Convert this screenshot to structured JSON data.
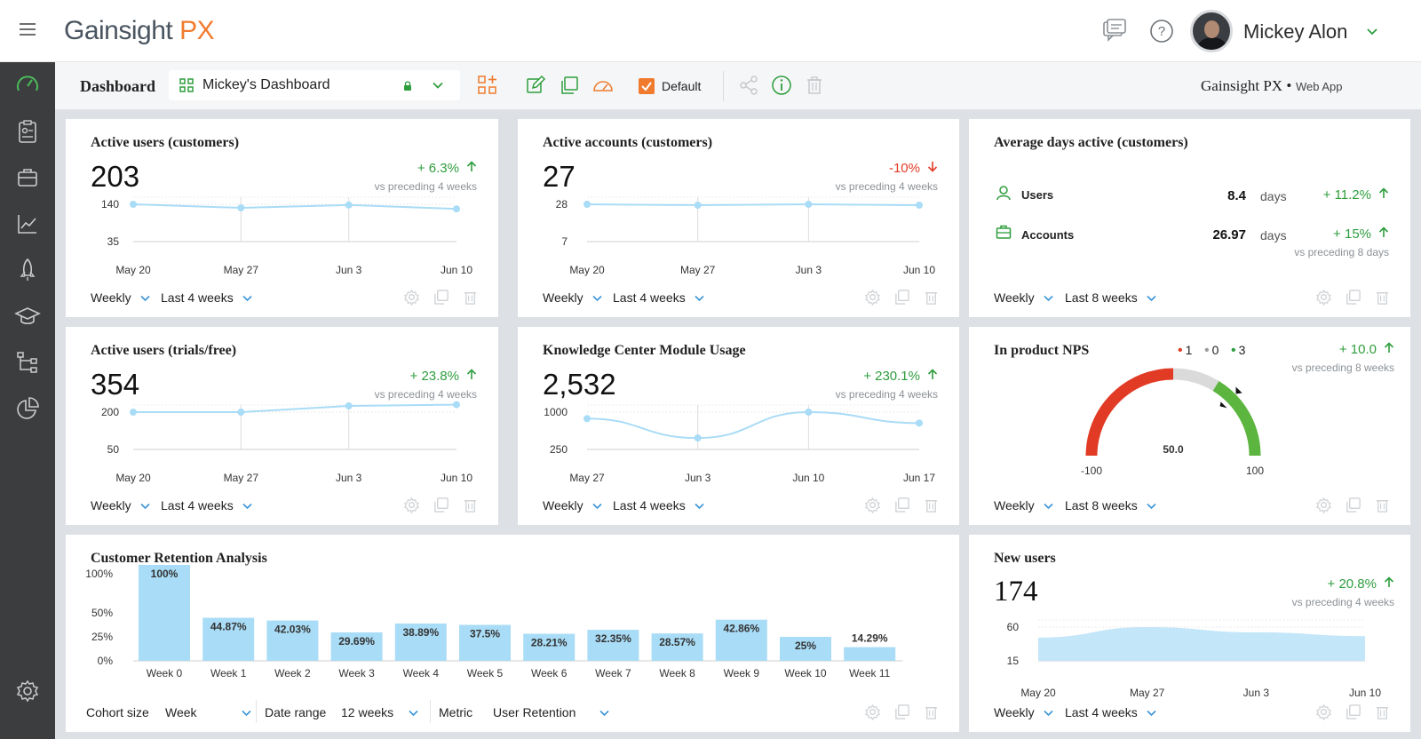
{
  "header": {
    "logo_text": "Gainsight",
    "logo_accent": "PX",
    "user_name": "Mickey Alon"
  },
  "toolbar": {
    "title": "Dashboard",
    "dashboard_name": "Mickey's Dashboard",
    "default_label": "Default",
    "app_name": "Gainsight PX",
    "app_sep": "•",
    "app_type": "Web App"
  },
  "colors": {
    "accent_orange": "#f07b2e",
    "positive_green": "#2e9d3d",
    "negative_red": "#e23b25",
    "line_blue": "#a9dcf6",
    "bar_blue": "#a9dcf6",
    "sidebar_bg": "#3b3d3f"
  },
  "icons": {
    "sidebar": [
      "speedometer-icon",
      "clipboard-icon",
      "briefcase-icon",
      "line-chart-icon",
      "rocket-icon",
      "graduation-cap-icon",
      "hierarchy-icon",
      "pie-chart-icon",
      "gear-icon"
    ],
    "toolbar": [
      "grid-icon",
      "lock-icon",
      "chevron-down-icon",
      "add-widget-icon",
      "edit-icon",
      "copy-icon",
      "gauge-icon",
      "share-icon",
      "info-icon",
      "trash-icon"
    ],
    "header": [
      "hamburger-icon",
      "chat-icon",
      "help-icon",
      "chevron-down-icon"
    ],
    "footer": [
      "settings-icon",
      "copy-icon",
      "trash-icon"
    ]
  },
  "cards": {
    "active_users_customers": {
      "title": "Active users (customers)",
      "value": "203",
      "change": "+ 6.3%",
      "direction": "up",
      "compare": "vs preceding 4 weeks",
      "period": "Weekly",
      "range": "Last 4 weeks"
    },
    "active_accounts_customers": {
      "title": "Active accounts (customers)",
      "value": "27",
      "change": "-10%",
      "direction": "down",
      "compare": "vs preceding 4 weeks",
      "period": "Weekly",
      "range": "Last 4 weeks"
    },
    "average_days_active": {
      "title": "Average days active (customers)",
      "rows": [
        {
          "label": "Users",
          "value": "8.4",
          "unit": "days",
          "change": "+ 11.2%"
        },
        {
          "label": "Accounts",
          "value": "26.97",
          "unit": "days",
          "change": "+ 15%"
        }
      ],
      "compare": "vs preceding 8 days",
      "period": "Weekly",
      "range": "Last 8 weeks"
    },
    "active_users_trials": {
      "title": "Active users (trials/free)",
      "value": "354",
      "change": "+ 23.8%",
      "direction": "up",
      "compare": "vs preceding 4 weeks",
      "period": "Weekly",
      "range": "Last 4 weeks"
    },
    "knowledge_center": {
      "title": "Knowledge Center Module Usage",
      "value": "2,532",
      "change": "+ 230.1%",
      "direction": "up",
      "compare": "vs preceding 4 weeks",
      "period": "Weekly",
      "range": "Last 4 weeks"
    },
    "nps": {
      "title": "In product NPS",
      "legend": [
        {
          "count": "1",
          "color": "#e23b25"
        },
        {
          "count": "0",
          "color": "#9b9b9b"
        },
        {
          "count": "3",
          "color": "#2e9d3d"
        }
      ],
      "change": "+ 10.0",
      "compare": "vs preceding 8 weeks",
      "score": "50.0",
      "min_label": "-100",
      "max_label": "100",
      "period": "Weekly",
      "range": "Last 8 weeks"
    },
    "retention": {
      "title": "Customer Retention Analysis",
      "cohort_size_label": "Cohort size",
      "cohort_size_value": "Week",
      "date_range_label": "Date range",
      "date_range_value": "12 weeks",
      "metric_label": "Metric",
      "metric_value": "User Retention"
    },
    "new_users": {
      "title": "New users",
      "value": "174",
      "change": "+ 20.8%",
      "direction": "up",
      "compare": "vs preceding 4 weeks",
      "period": "Weekly",
      "range": "Last 4 weeks"
    }
  },
  "chart_data": [
    {
      "id": "active_users_customers",
      "type": "line",
      "x": [
        "May 20",
        "May 27",
        "Jun 3",
        "Jun 10"
      ],
      "y_ticks": [
        "140",
        "35"
      ],
      "y_tick_values": [
        140,
        35
      ],
      "series": [
        {
          "values": [
            140,
            130,
            138,
            127
          ]
        }
      ]
    },
    {
      "id": "active_accounts_customers",
      "type": "line",
      "x": [
        "May 20",
        "May 27",
        "Jun 3",
        "Jun 10"
      ],
      "y_ticks": [
        "28",
        "7"
      ],
      "y_tick_values": [
        28,
        7
      ],
      "series": [
        {
          "values": [
            28,
            27.5,
            28,
            27.5
          ]
        }
      ]
    },
    {
      "id": "active_users_trials",
      "type": "line",
      "x": [
        "May 20",
        "May 27",
        "Jun 3",
        "Jun 10"
      ],
      "y_ticks": [
        "200",
        "50"
      ],
      "y_tick_values": [
        200,
        50
      ],
      "series": [
        {
          "values": [
            200,
            200,
            225,
            230
          ]
        }
      ]
    },
    {
      "id": "knowledge_center",
      "type": "line",
      "x": [
        "May 27",
        "Jun 3",
        "Jun 10",
        "Jun 17"
      ],
      "y_ticks": [
        "1000",
        "250"
      ],
      "y_tick_values": [
        1000,
        250
      ],
      "series": [
        {
          "values": [
            870,
            480,
            1000,
            780
          ]
        }
      ]
    },
    {
      "id": "new_users",
      "type": "area",
      "x": [
        "May 20",
        "May 27",
        "Jun 3",
        "Jun 10"
      ],
      "y_ticks": [
        "60",
        "15"
      ],
      "y_tick_values": [
        60,
        15
      ],
      "series": [
        {
          "values": [
            46,
            60,
            53,
            48
          ]
        }
      ]
    },
    {
      "id": "retention",
      "type": "bar",
      "categories": [
        "Week 0",
        "Week 1",
        "Week 2",
        "Week 3",
        "Week 4",
        "Week 5",
        "Week 6",
        "Week 7",
        "Week 8",
        "Week 9",
        "Week 10",
        "Week 11"
      ],
      "values": [
        100,
        44.87,
        42.03,
        29.69,
        38.89,
        37.5,
        28.21,
        32.35,
        28.57,
        42.86,
        25,
        14.29
      ],
      "labels": [
        "100%",
        "44.87%",
        "42.03%",
        "29.69%",
        "38.89%",
        "37.5%",
        "28.21%",
        "32.35%",
        "28.57%",
        "42.86%",
        "25%",
        "14.29%"
      ],
      "y_ticks": [
        "100%",
        "50%",
        "25%",
        "0%"
      ],
      "y_tick_values": [
        100,
        50,
        25,
        0
      ],
      "ylim": [
        0,
        100
      ]
    },
    {
      "id": "nps",
      "type": "gauge",
      "value": 50,
      "range": [
        -100,
        100
      ],
      "segments": [
        {
          "from": -100,
          "to": 0,
          "color": "#e23b25"
        },
        {
          "from": 0,
          "to": 35,
          "color": "#dadada"
        },
        {
          "from": 35,
          "to": 100,
          "color": "#5cb53f"
        }
      ]
    }
  ]
}
